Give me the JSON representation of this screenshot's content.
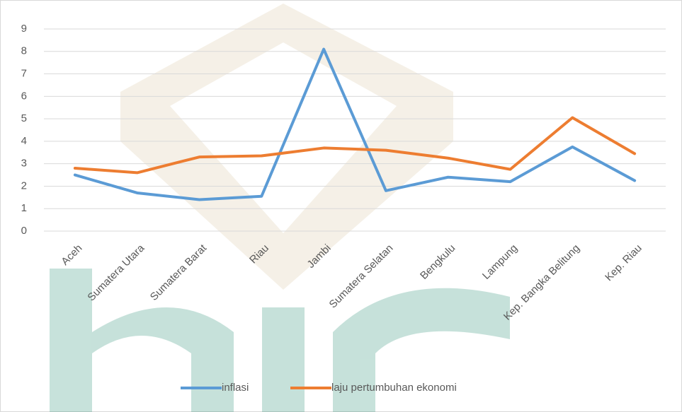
{
  "chart_data": {
    "type": "line",
    "categories": [
      "Aceh",
      "Sumatera Utara",
      "Sumatera Barat",
      "Riau",
      "Jambi",
      "Sumatera Selatan",
      "Bengkulu",
      "Lampung",
      "Kep. Bangka Belitung",
      "Kep. Riau"
    ],
    "series": [
      {
        "name": "inflasi",
        "color": "#5b9bd5",
        "values": [
          2.5,
          1.7,
          1.4,
          1.55,
          8.1,
          1.8,
          2.4,
          2.2,
          3.75,
          2.25
        ]
      },
      {
        "name": "laju pertumbuhan ekonomi",
        "color": "#ed7d31",
        "values": [
          2.8,
          2.6,
          3.3,
          3.35,
          3.7,
          3.6,
          3.25,
          2.75,
          5.05,
          3.45
        ]
      }
    ],
    "ylim": [
      0,
      9
    ],
    "yticks": [
      0,
      1,
      2,
      3,
      4,
      5,
      6,
      7,
      8,
      9
    ],
    "grid": true,
    "legend": "bottom"
  }
}
